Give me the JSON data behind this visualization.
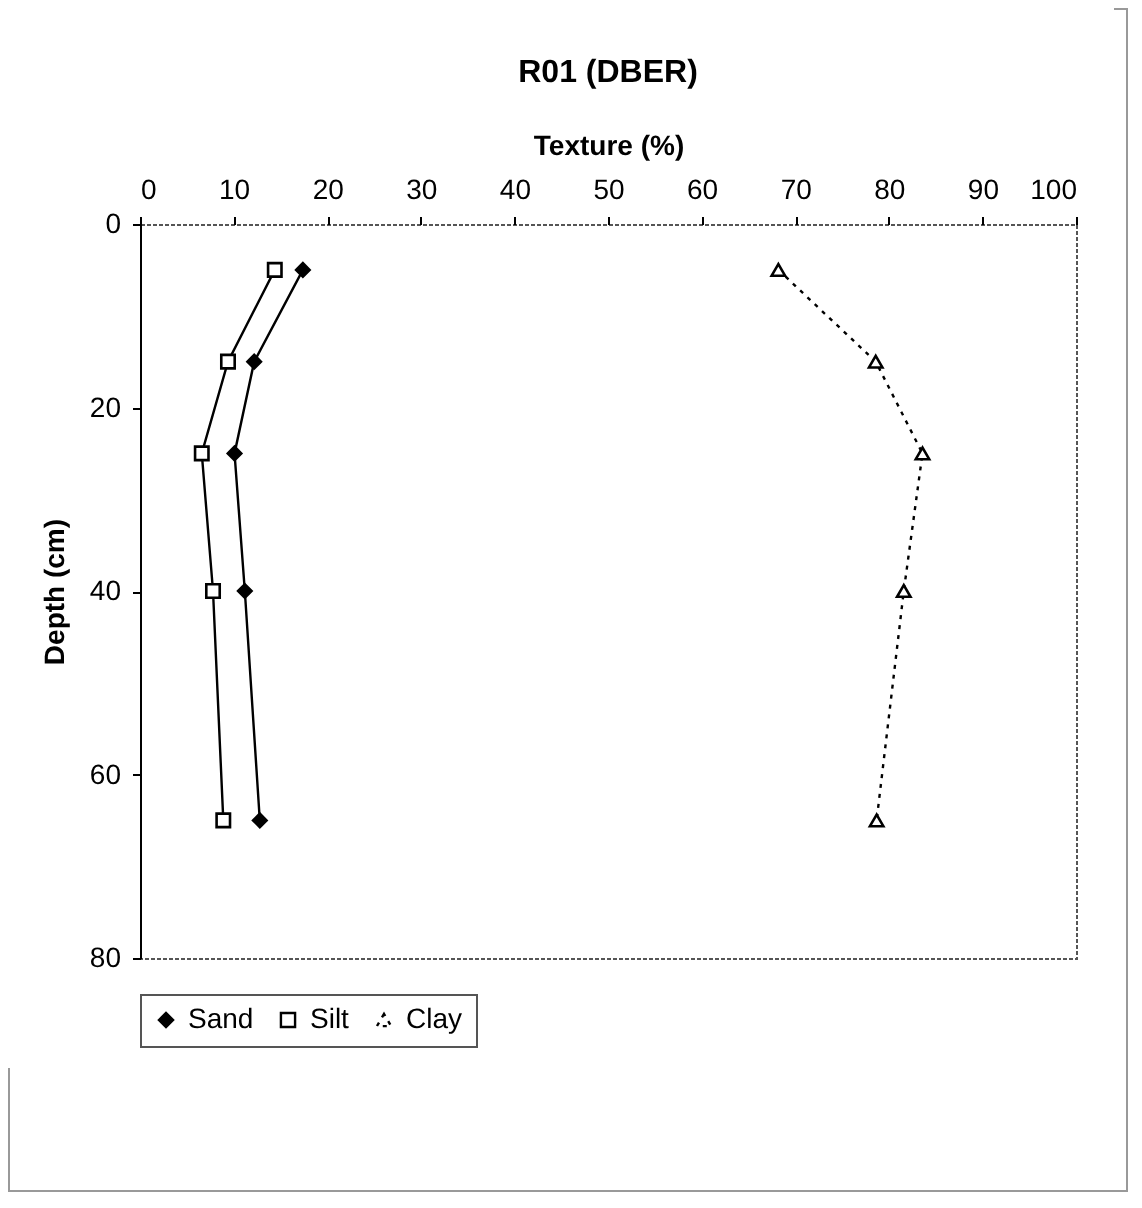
{
  "chart_data": {
    "type": "line",
    "title": "R01 (DBER)",
    "xlabel": "Texture (%)",
    "ylabel": "Depth (cm)",
    "xlim": [
      0,
      100
    ],
    "xticks": [
      0,
      10,
      20,
      30,
      40,
      50,
      60,
      70,
      80,
      90,
      100
    ],
    "ylim": [
      80,
      0
    ],
    "yticks": [
      0,
      20,
      40,
      60,
      80
    ],
    "grid": false,
    "legend": "bottom",
    "series": [
      {
        "name": "Sand",
        "color": "#000000",
        "marker": "diamond",
        "line_style": "solid",
        "x": [
          17.4,
          12.2,
          10.1,
          11.2,
          12.8
        ],
        "values": [
          5,
          15,
          25,
          40,
          65
        ]
      },
      {
        "name": "Silt",
        "color": "#000000",
        "marker": "square",
        "line_style": "solid",
        "x": [
          14.4,
          9.4,
          6.6,
          7.8,
          8.9
        ],
        "values": [
          5,
          15,
          25,
          40,
          65
        ]
      },
      {
        "name": "Clay",
        "color": "#000000",
        "marker": "triangle",
        "line_style": "dotted",
        "x": [
          68.2,
          78.6,
          83.6,
          81.6,
          78.7
        ],
        "values": [
          5,
          15,
          25,
          40,
          65
        ]
      }
    ]
  }
}
